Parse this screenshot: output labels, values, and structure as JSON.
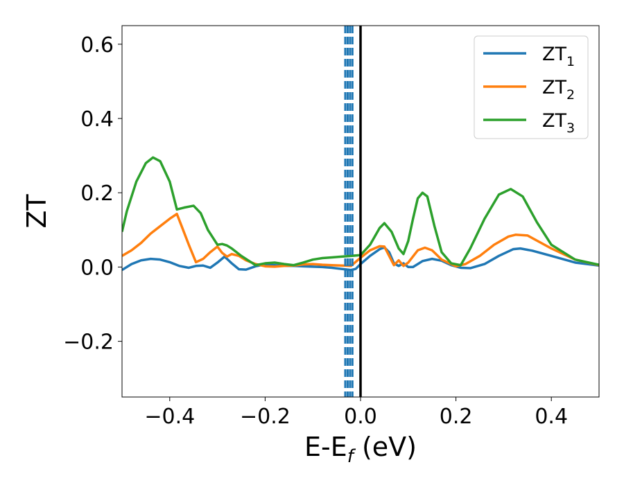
{
  "chart_data": {
    "type": "line",
    "xlabel": "E-E",
    "xlabel_subscript": "f",
    "xlabel_unit": " (eV)",
    "ylabel": "ZT",
    "xlim": [
      -0.5,
      0.5
    ],
    "ylim": [
      -0.35,
      0.65
    ],
    "xticks": [
      -0.4,
      -0.2,
      0.0,
      0.2,
      0.4
    ],
    "xtick_labels": [
      "−0.4",
      "−0.2",
      "0.0",
      "0.2",
      "0.4"
    ],
    "yticks": [
      -0.2,
      0.0,
      0.2,
      0.4,
      0.6
    ],
    "ytick_labels": [
      "−0.2",
      "0.0",
      "0.2",
      "0.4",
      "0.6"
    ],
    "grid": false,
    "legend_position": "top-right",
    "vertical_lines": [
      {
        "x": 0.0,
        "style": "solid",
        "color": "#000000"
      },
      {
        "x": -0.032,
        "style": "dashed",
        "color": "#1f77b4"
      },
      {
        "x": -0.027,
        "style": "dashed",
        "color": "#1f77b4"
      },
      {
        "x": -0.022,
        "style": "dashed",
        "color": "#1f77b4"
      },
      {
        "x": -0.017,
        "style": "dashed",
        "color": "#1f77b4"
      }
    ],
    "series": [
      {
        "name": "ZT",
        "name_subscript": "1",
        "color": "#1f77b4",
        "x": [
          -0.5,
          -0.48,
          -0.46,
          -0.44,
          -0.42,
          -0.4,
          -0.38,
          -0.36,
          -0.345,
          -0.33,
          -0.315,
          -0.3,
          -0.285,
          -0.27,
          -0.255,
          -0.24,
          -0.22,
          -0.2,
          -0.18,
          -0.16,
          -0.14,
          -0.12,
          -0.1,
          -0.08,
          -0.06,
          -0.04,
          -0.02,
          -0.01,
          0.0,
          0.02,
          0.04,
          0.05,
          0.06,
          0.07,
          0.08,
          0.09,
          0.1,
          0.11,
          0.13,
          0.15,
          0.17,
          0.19,
          0.21,
          0.23,
          0.26,
          0.29,
          0.32,
          0.335,
          0.36,
          0.4,
          0.45,
          0.5
        ],
        "y": [
          -0.008,
          0.008,
          0.018,
          0.022,
          0.02,
          0.013,
          0.003,
          -0.002,
          0.003,
          0.004,
          -0.002,
          0.012,
          0.028,
          0.01,
          -0.006,
          -0.007,
          0.002,
          0.007,
          0.005,
          0.003,
          0.003,
          0.002,
          0.001,
          0.0,
          -0.002,
          -0.005,
          -0.008,
          -0.005,
          0.008,
          0.03,
          0.048,
          0.053,
          0.04,
          0.01,
          0.003,
          0.01,
          0.0,
          0.0,
          0.016,
          0.022,
          0.017,
          0.005,
          -0.002,
          -0.003,
          0.008,
          0.03,
          0.048,
          0.05,
          0.044,
          0.03,
          0.012,
          0.004
        ]
      },
      {
        "name": "ZT",
        "name_subscript": "2",
        "color": "#ff7f0e",
        "x": [
          -0.5,
          -0.48,
          -0.46,
          -0.44,
          -0.42,
          -0.4,
          -0.385,
          -0.375,
          -0.36,
          -0.345,
          -0.33,
          -0.315,
          -0.3,
          -0.29,
          -0.28,
          -0.27,
          -0.255,
          -0.24,
          -0.22,
          -0.2,
          -0.18,
          -0.16,
          -0.14,
          -0.12,
          -0.1,
          -0.08,
          -0.06,
          -0.04,
          -0.02,
          0.0,
          0.02,
          0.04,
          0.05,
          0.06,
          0.07,
          0.08,
          0.09,
          0.1,
          0.12,
          0.135,
          0.15,
          0.17,
          0.2,
          0.22,
          0.25,
          0.28,
          0.31,
          0.325,
          0.35,
          0.4,
          0.45,
          0.5
        ],
        "y": [
          0.03,
          0.045,
          0.065,
          0.09,
          0.11,
          0.13,
          0.143,
          0.11,
          0.06,
          0.013,
          0.022,
          0.04,
          0.055,
          0.038,
          0.028,
          0.035,
          0.03,
          0.018,
          0.008,
          0.002,
          0.001,
          0.003,
          0.004,
          0.007,
          0.008,
          0.006,
          0.005,
          0.004,
          0.003,
          0.025,
          0.045,
          0.056,
          0.055,
          0.03,
          0.005,
          0.018,
          0.003,
          0.012,
          0.045,
          0.052,
          0.045,
          0.02,
          0.002,
          0.008,
          0.03,
          0.06,
          0.082,
          0.087,
          0.085,
          0.05,
          0.02,
          0.005
        ]
      },
      {
        "name": "ZT",
        "name_subscript": "3",
        "color": "#2ca02c",
        "x": [
          -0.5,
          -0.49,
          -0.47,
          -0.45,
          -0.435,
          -0.42,
          -0.4,
          -0.385,
          -0.37,
          -0.35,
          -0.335,
          -0.32,
          -0.3,
          -0.29,
          -0.28,
          -0.27,
          -0.25,
          -0.22,
          -0.2,
          -0.18,
          -0.16,
          -0.14,
          -0.12,
          -0.1,
          -0.08,
          -0.06,
          -0.04,
          -0.02,
          0.0,
          0.02,
          0.04,
          0.05,
          0.065,
          0.08,
          0.09,
          0.1,
          0.11,
          0.12,
          0.13,
          0.14,
          0.155,
          0.17,
          0.19,
          0.21,
          0.23,
          0.26,
          0.29,
          0.315,
          0.34,
          0.37,
          0.4,
          0.45,
          0.5
        ],
        "y": [
          0.095,
          0.15,
          0.23,
          0.28,
          0.295,
          0.285,
          0.23,
          0.155,
          0.16,
          0.165,
          0.145,
          0.1,
          0.06,
          0.062,
          0.058,
          0.05,
          0.03,
          0.005,
          0.01,
          0.012,
          0.008,
          0.005,
          0.012,
          0.02,
          0.024,
          0.026,
          0.028,
          0.03,
          0.032,
          0.06,
          0.105,
          0.118,
          0.095,
          0.05,
          0.035,
          0.07,
          0.13,
          0.185,
          0.2,
          0.19,
          0.11,
          0.04,
          0.01,
          0.005,
          0.05,
          0.13,
          0.195,
          0.21,
          0.19,
          0.12,
          0.06,
          0.02,
          0.006
        ]
      }
    ]
  }
}
